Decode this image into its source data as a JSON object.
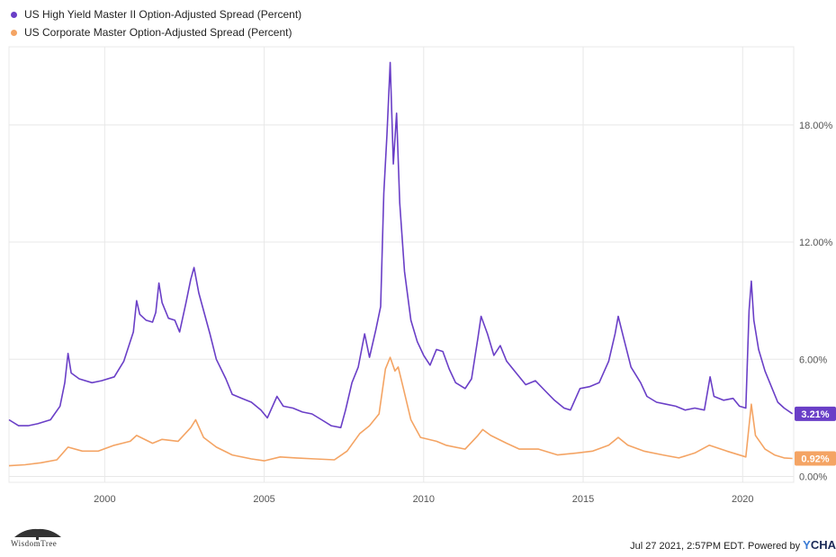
{
  "legend": {
    "hy_label": "US High Yield Master II Option-Adjusted Spread (Percent)",
    "ig_label": "US Corporate Master Option-Adjusted Spread (Percent)"
  },
  "colors": {
    "hy": "#6a3fc7",
    "ig": "#f4a464",
    "grid": "#e8e8e8"
  },
  "footer": {
    "logo_text": "WisdomTree",
    "timestamp": "Jul 27 2021, 2:57PM EDT.",
    "powered_by": "Powered by",
    "brand_y": "Y",
    "brand_rest": "CHA"
  },
  "chart_data": {
    "type": "line",
    "xlim": [
      1997.0,
      2021.6
    ],
    "ylim": [
      -0.3,
      22.0
    ],
    "x_ticks": [
      2000,
      2005,
      2010,
      2015,
      2020
    ],
    "x_tick_labels": [
      "2000",
      "2005",
      "2010",
      "2015",
      "2020"
    ],
    "y_ticks": [
      0,
      6,
      12,
      18
    ],
    "y_tick_labels": [
      "0.00%",
      "6.00%",
      "12.00%",
      "18.00%"
    ],
    "grid": true,
    "last_value_labels": [
      "3.21%",
      "0.92%"
    ],
    "series": [
      {
        "name": "US High Yield Master II Option-Adjusted Spread (Percent)",
        "color": "#6a3fc7",
        "last_label": "3.21%",
        "points": [
          [
            1997.0,
            2.9
          ],
          [
            1997.3,
            2.6
          ],
          [
            1997.6,
            2.6
          ],
          [
            1997.9,
            2.7
          ],
          [
            1998.3,
            2.9
          ],
          [
            1998.6,
            3.6
          ],
          [
            1998.75,
            4.8
          ],
          [
            1998.85,
            6.3
          ],
          [
            1998.95,
            5.3
          ],
          [
            1999.2,
            5.0
          ],
          [
            1999.6,
            4.8
          ],
          [
            1999.9,
            4.9
          ],
          [
            2000.3,
            5.1
          ],
          [
            2000.6,
            5.9
          ],
          [
            2000.9,
            7.4
          ],
          [
            2001.0,
            9.0
          ],
          [
            2001.1,
            8.3
          ],
          [
            2001.3,
            8.0
          ],
          [
            2001.5,
            7.9
          ],
          [
            2001.6,
            8.4
          ],
          [
            2001.7,
            9.9
          ],
          [
            2001.8,
            8.9
          ],
          [
            2002.0,
            8.1
          ],
          [
            2002.2,
            8.0
          ],
          [
            2002.35,
            7.4
          ],
          [
            2002.55,
            8.9
          ],
          [
            2002.7,
            10.1
          ],
          [
            2002.8,
            10.7
          ],
          [
            2002.95,
            9.4
          ],
          [
            2003.1,
            8.5
          ],
          [
            2003.3,
            7.3
          ],
          [
            2003.5,
            6.0
          ],
          [
            2003.8,
            5.0
          ],
          [
            2004.0,
            4.2
          ],
          [
            2004.3,
            4.0
          ],
          [
            2004.6,
            3.8
          ],
          [
            2004.9,
            3.4
          ],
          [
            2005.1,
            3.0
          ],
          [
            2005.4,
            4.1
          ],
          [
            2005.6,
            3.6
          ],
          [
            2005.9,
            3.5
          ],
          [
            2006.2,
            3.3
          ],
          [
            2006.5,
            3.2
          ],
          [
            2006.8,
            2.9
          ],
          [
            2007.1,
            2.6
          ],
          [
            2007.4,
            2.5
          ],
          [
            2007.55,
            3.4
          ],
          [
            2007.75,
            4.8
          ],
          [
            2007.95,
            5.6
          ],
          [
            2008.15,
            7.3
          ],
          [
            2008.3,
            6.1
          ],
          [
            2008.5,
            7.5
          ],
          [
            2008.65,
            8.7
          ],
          [
            2008.75,
            14.5
          ],
          [
            2008.85,
            17.5
          ],
          [
            2008.95,
            21.2
          ],
          [
            2009.05,
            16.0
          ],
          [
            2009.15,
            18.6
          ],
          [
            2009.25,
            14.0
          ],
          [
            2009.4,
            10.5
          ],
          [
            2009.6,
            8.0
          ],
          [
            2009.8,
            6.9
          ],
          [
            2010.0,
            6.2
          ],
          [
            2010.2,
            5.7
          ],
          [
            2010.4,
            6.5
          ],
          [
            2010.6,
            6.4
          ],
          [
            2010.8,
            5.5
          ],
          [
            2011.0,
            4.8
          ],
          [
            2011.3,
            4.5
          ],
          [
            2011.5,
            5.0
          ],
          [
            2011.7,
            7.1
          ],
          [
            2011.8,
            8.2
          ],
          [
            2012.0,
            7.3
          ],
          [
            2012.2,
            6.2
          ],
          [
            2012.4,
            6.7
          ],
          [
            2012.6,
            5.9
          ],
          [
            2012.9,
            5.3
          ],
          [
            2013.2,
            4.7
          ],
          [
            2013.5,
            4.9
          ],
          [
            2013.8,
            4.4
          ],
          [
            2014.1,
            3.9
          ],
          [
            2014.4,
            3.5
          ],
          [
            2014.6,
            3.4
          ],
          [
            2014.9,
            4.5
          ],
          [
            2015.2,
            4.6
          ],
          [
            2015.5,
            4.8
          ],
          [
            2015.8,
            5.9
          ],
          [
            2016.0,
            7.3
          ],
          [
            2016.1,
            8.2
          ],
          [
            2016.25,
            7.2
          ],
          [
            2016.5,
            5.6
          ],
          [
            2016.8,
            4.8
          ],
          [
            2017.0,
            4.1
          ],
          [
            2017.3,
            3.8
          ],
          [
            2017.6,
            3.7
          ],
          [
            2017.9,
            3.6
          ],
          [
            2018.2,
            3.4
          ],
          [
            2018.5,
            3.5
          ],
          [
            2018.8,
            3.4
          ],
          [
            2018.98,
            5.1
          ],
          [
            2019.1,
            4.1
          ],
          [
            2019.4,
            3.9
          ],
          [
            2019.7,
            4.0
          ],
          [
            2019.9,
            3.6
          ],
          [
            2020.1,
            3.5
          ],
          [
            2020.2,
            8.5
          ],
          [
            2020.27,
            10.0
          ],
          [
            2020.35,
            8.0
          ],
          [
            2020.5,
            6.5
          ],
          [
            2020.7,
            5.4
          ],
          [
            2020.9,
            4.6
          ],
          [
            2021.1,
            3.8
          ],
          [
            2021.3,
            3.5
          ],
          [
            2021.56,
            3.21
          ]
        ]
      },
      {
        "name": "US Corporate Master Option-Adjusted Spread (Percent)",
        "color": "#f4a464",
        "last_label": "0.92%",
        "points": [
          [
            1997.0,
            0.55
          ],
          [
            1997.5,
            0.6
          ],
          [
            1998.0,
            0.7
          ],
          [
            1998.5,
            0.85
          ],
          [
            1998.85,
            1.5
          ],
          [
            1999.3,
            1.3
          ],
          [
            1999.8,
            1.3
          ],
          [
            2000.3,
            1.6
          ],
          [
            2000.8,
            1.8
          ],
          [
            2001.0,
            2.1
          ],
          [
            2001.5,
            1.7
          ],
          [
            2001.8,
            1.9
          ],
          [
            2002.3,
            1.8
          ],
          [
            2002.7,
            2.5
          ],
          [
            2002.85,
            2.9
          ],
          [
            2003.1,
            2.0
          ],
          [
            2003.5,
            1.5
          ],
          [
            2004.0,
            1.1
          ],
          [
            2004.6,
            0.9
          ],
          [
            2005.0,
            0.8
          ],
          [
            2005.5,
            1.0
          ],
          [
            2006.0,
            0.95
          ],
          [
            2006.6,
            0.9
          ],
          [
            2007.2,
            0.85
          ],
          [
            2007.6,
            1.3
          ],
          [
            2008.0,
            2.2
          ],
          [
            2008.3,
            2.6
          ],
          [
            2008.6,
            3.2
          ],
          [
            2008.8,
            5.5
          ],
          [
            2008.95,
            6.1
          ],
          [
            2009.1,
            5.4
          ],
          [
            2009.2,
            5.6
          ],
          [
            2009.35,
            4.6
          ],
          [
            2009.6,
            2.9
          ],
          [
            2009.9,
            2.0
          ],
          [
            2010.4,
            1.8
          ],
          [
            2010.7,
            1.6
          ],
          [
            2011.3,
            1.4
          ],
          [
            2011.7,
            2.1
          ],
          [
            2011.85,
            2.4
          ],
          [
            2012.1,
            2.1
          ],
          [
            2012.6,
            1.7
          ],
          [
            2013.0,
            1.4
          ],
          [
            2013.6,
            1.4
          ],
          [
            2014.2,
            1.1
          ],
          [
            2014.8,
            1.2
          ],
          [
            2015.3,
            1.3
          ],
          [
            2015.8,
            1.6
          ],
          [
            2016.1,
            2.0
          ],
          [
            2016.4,
            1.6
          ],
          [
            2016.9,
            1.3
          ],
          [
            2017.5,
            1.1
          ],
          [
            2018.0,
            0.95
          ],
          [
            2018.5,
            1.2
          ],
          [
            2018.95,
            1.6
          ],
          [
            2019.5,
            1.3
          ],
          [
            2020.1,
            1.0
          ],
          [
            2020.2,
            2.6
          ],
          [
            2020.27,
            3.7
          ],
          [
            2020.4,
            2.1
          ],
          [
            2020.7,
            1.4
          ],
          [
            2021.0,
            1.1
          ],
          [
            2021.3,
            0.95
          ],
          [
            2021.56,
            0.92
          ]
        ]
      }
    ]
  }
}
